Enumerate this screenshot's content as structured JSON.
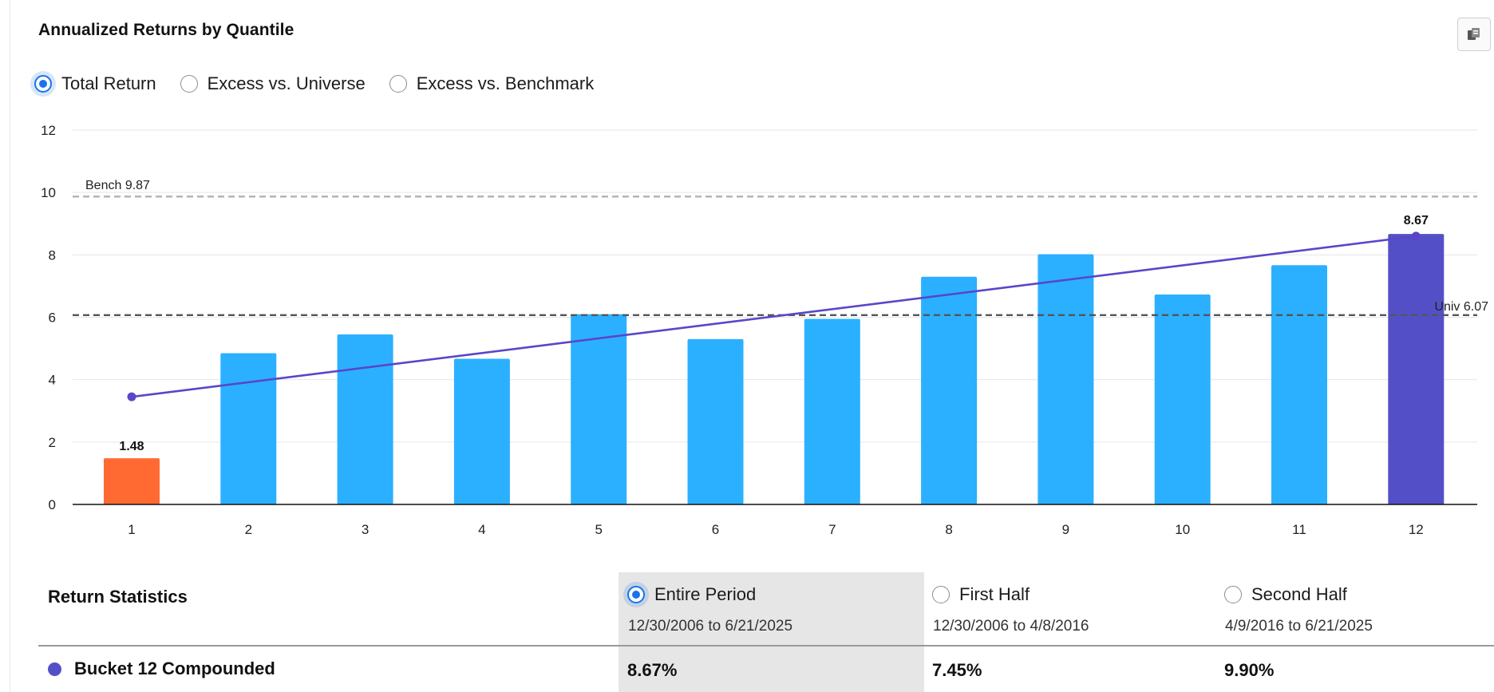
{
  "title": "Annualized Returns by Quantile",
  "export_icon": "copy-export-icon",
  "mode_options": [
    {
      "label": "Total Return",
      "selected": true
    },
    {
      "label": "Excess vs. Universe",
      "selected": false
    },
    {
      "label": "Excess vs. Benchmark",
      "selected": false
    }
  ],
  "colors": {
    "bar": "#2bb0ff",
    "bar_first": "#ff6a33",
    "bar_last": "#5350c7",
    "trend": "#5a46c8",
    "accent": "#1a73e8",
    "grid": "#e6e6e6"
  },
  "chart_data": {
    "type": "bar",
    "categories": [
      "1",
      "2",
      "3",
      "4",
      "5",
      "6",
      "7",
      "8",
      "9",
      "10",
      "11",
      "12"
    ],
    "values": [
      1.48,
      4.85,
      5.45,
      4.67,
      6.1,
      5.3,
      5.95,
      7.3,
      8.02,
      6.73,
      7.67,
      8.67
    ],
    "data_labels": {
      "first": "1.48",
      "last": "8.67"
    },
    "trend_line": {
      "start": 3.45,
      "end": 8.6
    },
    "reference_lines": [
      {
        "label": "Bench 9.87",
        "value": 9.87,
        "style": "dashed",
        "color": "#b5b5b5"
      },
      {
        "label": "Univ 6.07",
        "value": 6.07,
        "style": "dashed",
        "color": "#555555"
      }
    ],
    "ylim": [
      0,
      12
    ],
    "yticks": [
      "0",
      "2",
      "4",
      "6",
      "8",
      "10",
      "12"
    ],
    "grid": true,
    "title": "",
    "xlabel": "",
    "ylabel": ""
  },
  "stats": {
    "title": "Return Statistics",
    "periods": [
      {
        "label": "Entire Period",
        "range": "12/30/2006 to 6/21/2025",
        "selected": true
      },
      {
        "label": "First Half",
        "range": "12/30/2006 to 4/8/2016",
        "selected": false
      },
      {
        "label": "Second Half",
        "range": "4/9/2016 to 6/21/2025",
        "selected": false
      }
    ],
    "rows": [
      {
        "label": "Bucket 12 Compounded",
        "dot_color": "#5350c7",
        "values": [
          "8.67%",
          "7.45%",
          "9.90%"
        ]
      }
    ]
  }
}
